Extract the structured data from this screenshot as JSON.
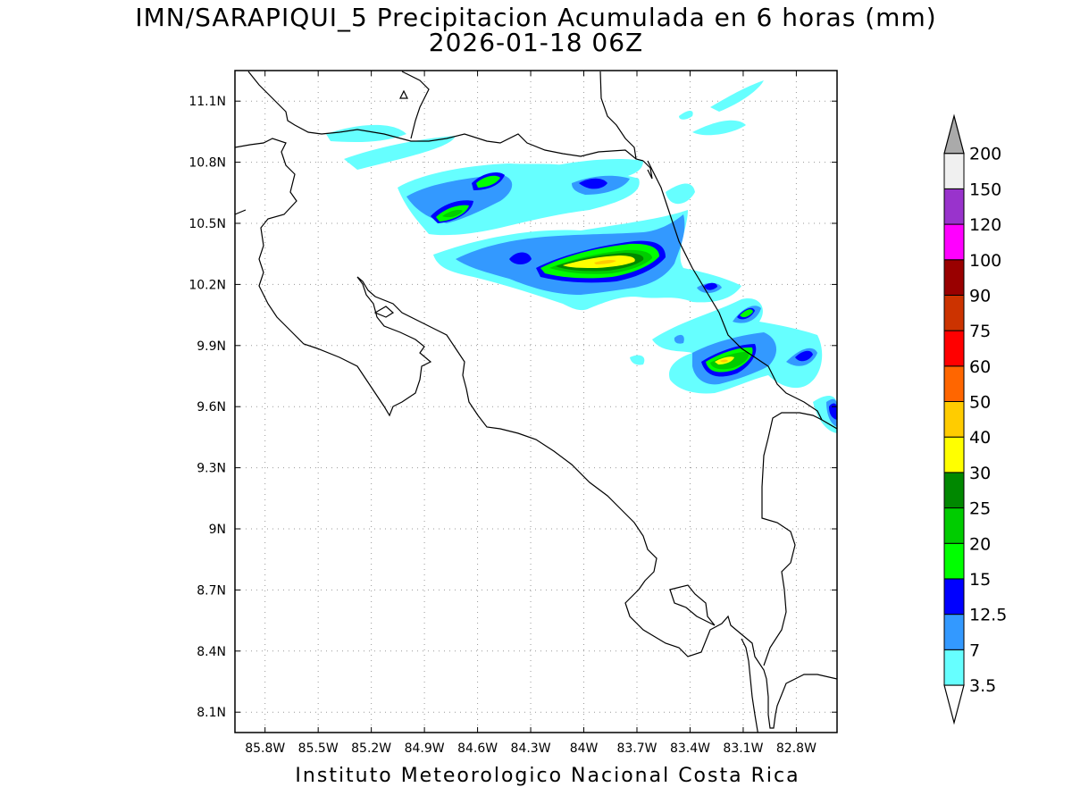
{
  "title": {
    "line1": "IMN/SARAPIQUI_5 Precipitacion Acumulada en 6 horas (mm)",
    "line2": "2026-01-18 06Z"
  },
  "footer": "Instituto Meteorologico Nacional Costa Rica",
  "map": {
    "lon_ticks": [
      "85.8W",
      "85.5W",
      "85.2W",
      "84.9W",
      "84.6W",
      "84.3W",
      "84W",
      "83.7W",
      "83.4W",
      "83.1W",
      "82.8W"
    ],
    "lat_ticks": [
      "11.1N",
      "10.8N",
      "10.5N",
      "10.2N",
      "9.9N",
      "9.6N",
      "9.3N",
      "9N",
      "8.7N",
      "8.4N",
      "8.1N"
    ],
    "lon_range": [
      -85.97,
      -82.57
    ],
    "lat_range": [
      8.0,
      11.25
    ],
    "grid": "dotted"
  },
  "legend": {
    "thresholds": [
      "3.5",
      "7",
      "12.5",
      "15",
      "20",
      "25",
      "30",
      "40",
      "50",
      "60",
      "75",
      "90",
      "100",
      "120",
      "150",
      "200"
    ],
    "colors": [
      "#66ffff",
      "#3399ff",
      "#0000ff",
      "#00ff00",
      "#00cc00",
      "#008800",
      "#ffff00",
      "#ffcc00",
      "#ff6600",
      "#ff0000",
      "#cc3300",
      "#990000",
      "#ff00ff",
      "#9933cc",
      "#f0f0f0",
      "#aaaaaa"
    ],
    "units": "mm"
  }
}
